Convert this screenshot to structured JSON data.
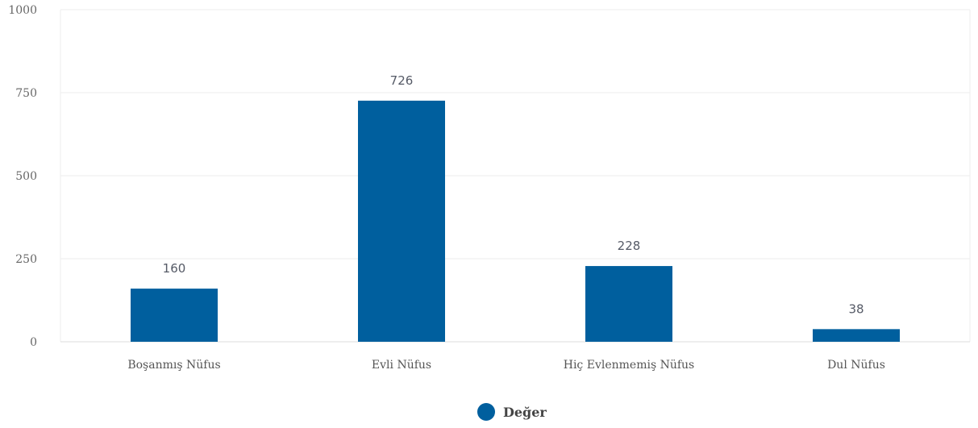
{
  "chart_data": {
    "type": "bar",
    "categories": [
      "Boşanmış Nüfus",
      "Evli Nüfus",
      "Hiç Evlenmemiş Nüfus",
      "Dul Nüfus"
    ],
    "series": [
      {
        "name": "Değer",
        "values": [
          160,
          726,
          228,
          38
        ],
        "color": "#005f9e"
      }
    ],
    "ylim": [
      0,
      1000
    ],
    "yticks": [
      0,
      250,
      500,
      750,
      1000
    ],
    "grid": true,
    "legend": "bottom-center",
    "data_labels": true
  }
}
